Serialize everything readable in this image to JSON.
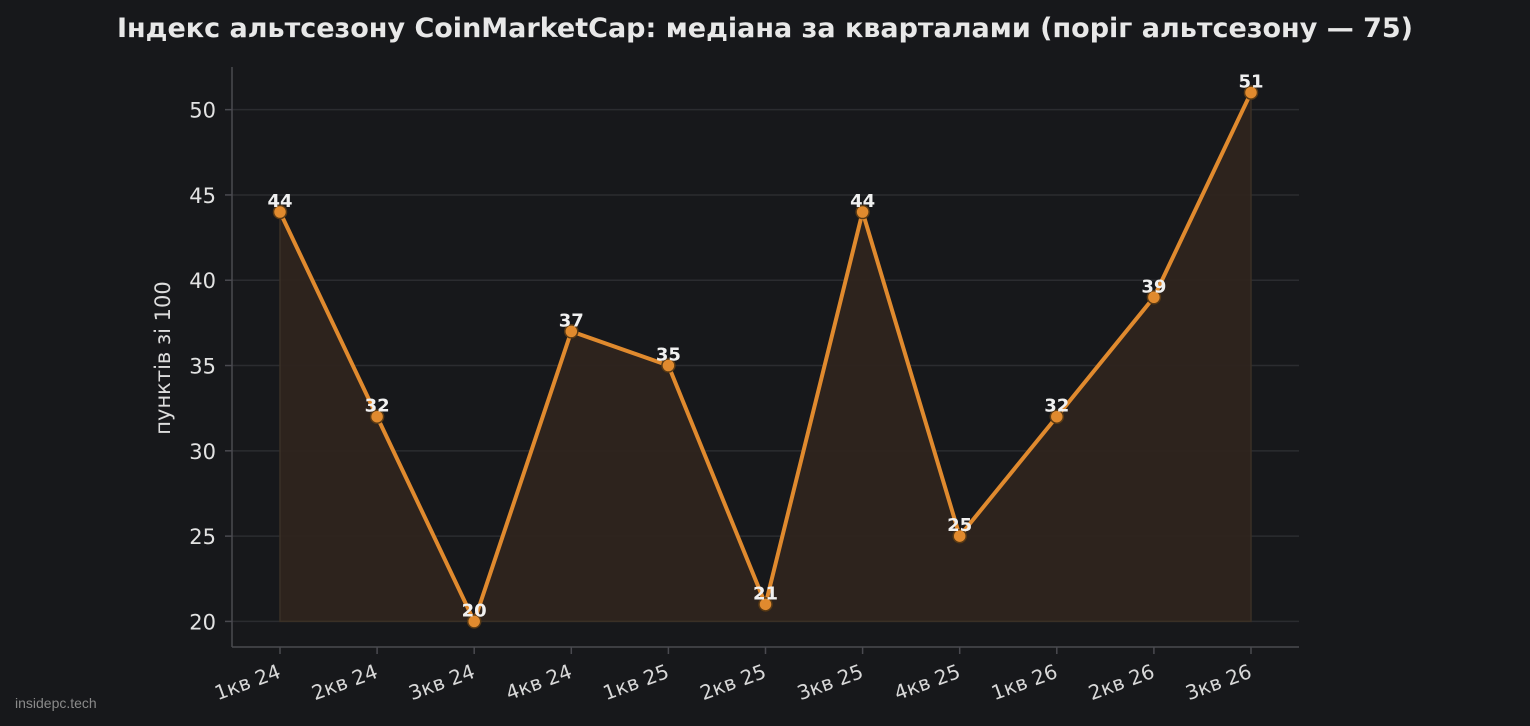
{
  "chart_data": {
    "type": "line",
    "title": "Індекс альтсезону CoinMarketCap: медіана за кварталами (поріг альтсезону — 75)",
    "xlabel": "",
    "ylabel": "пунктів зі 100",
    "categories": [
      "1кв 24",
      "2кв 24",
      "3кв 24",
      "4кв 24",
      "1кв 25",
      "2кв 25",
      "3кв 25",
      "4кв 25",
      "1кв 26",
      "2кв 26",
      "3кв 26"
    ],
    "values": [
      44,
      32,
      20,
      37,
      35,
      21,
      44,
      25,
      32,
      39,
      51
    ],
    "ylim": [
      18.5,
      52.5
    ],
    "yticks": [
      20,
      25,
      30,
      35,
      40,
      45,
      50
    ],
    "grid": true,
    "data_labels": true,
    "fill_under_line": true,
    "colors": {
      "background": "#17181b",
      "line": "#e08a2e",
      "fill": "#2e241e",
      "grid": "#2b2c30",
      "axis": "#4a4a50",
      "text": "#e2e2e2"
    }
  },
  "watermark": "insidepc.tech"
}
